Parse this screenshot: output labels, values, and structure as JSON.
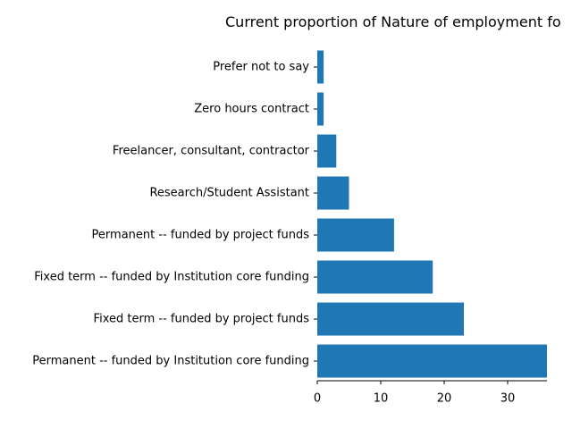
{
  "chart_data": {
    "type": "bar",
    "orientation": "horizontal",
    "title": "Current proportion of Nature of employment fo",
    "xlabel": "",
    "ylabel": "",
    "categories": [
      "Permanent -- funded by Institution core funding",
      "Fixed term -- funded by project funds",
      "Fixed term -- funded by Institution core funding",
      "Permanent -- funded by project funds",
      "Research/Student Assistant",
      "Freelancer, consultant, contractor",
      "Zero hours contract",
      "Prefer not to say"
    ],
    "values": [
      36.2,
      23.1,
      18.2,
      12.1,
      5.0,
      3.0,
      1.0,
      1.0
    ],
    "xlim": [
      0,
      36.2
    ],
    "xticks": [
      "0",
      "10",
      "20",
      "30"
    ],
    "grid": false,
    "legend": "none",
    "bar_color": "#1f77b4"
  }
}
